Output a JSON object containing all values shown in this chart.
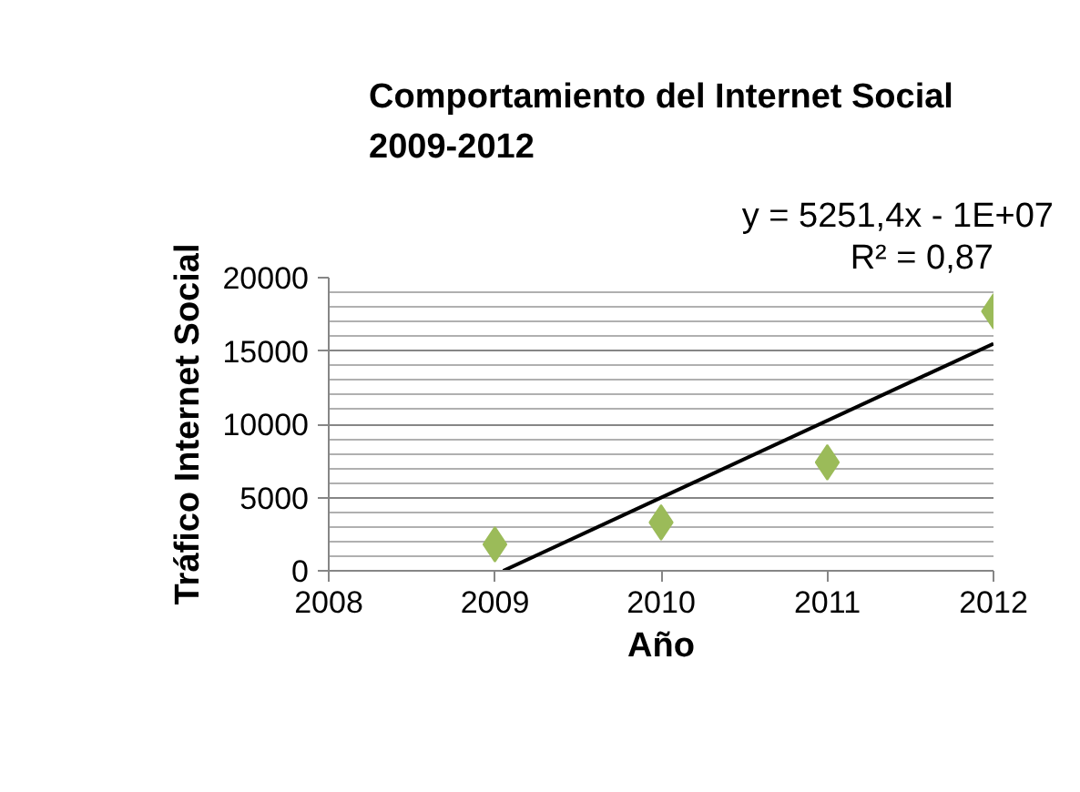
{
  "chart_data": {
    "type": "scatter",
    "title": "Comportamiento del Internet Social\n2009-2012",
    "xlabel": "Año",
    "ylabel": "Tráfico Internet Social",
    "x": [
      2009,
      2010,
      2011,
      2012
    ],
    "series": [
      {
        "color": "#9bbb59",
        "values": [
          1800,
          3300,
          7400,
          17700
        ],
        "marker": "diamond"
      },
      {
        "type": "line",
        "color": "#000000",
        "x": [
          2009.05,
          2012
        ],
        "values": [
          0,
          15500
        ]
      }
    ],
    "annotations": [
      "y = 5251,4x - 1E+07",
      "R² = 0,87"
    ],
    "xlim": [
      2008,
      2012
    ],
    "xticks": [
      2008,
      2009,
      2010,
      2011,
      2012
    ],
    "ylim": [
      0,
      20000
    ],
    "yticks": [
      0,
      5000,
      10000,
      15000,
      20000
    ],
    "grid": "y"
  }
}
